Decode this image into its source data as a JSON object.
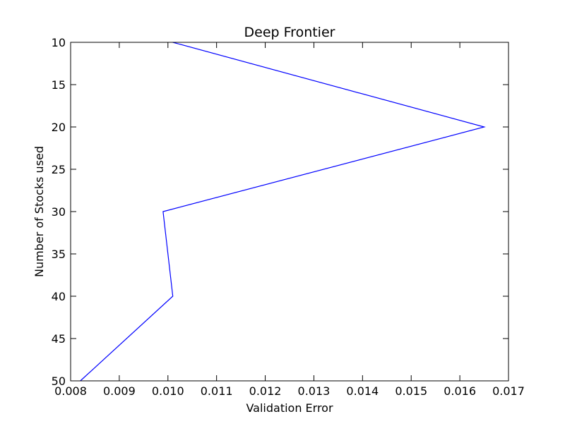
{
  "chart_data": {
    "type": "line",
    "title": "Deep Frontier",
    "xlabel": "Validation Error",
    "ylabel": "Number of Stocks used",
    "xlim": [
      0.008,
      0.017
    ],
    "ylim": [
      10,
      50
    ],
    "y_inverted": true,
    "grid": false,
    "series": [
      {
        "color": "#0000ff",
        "points": [
          {
            "x": 0.0101,
            "y": 10
          },
          {
            "x": 0.0165,
            "y": 20
          },
          {
            "x": 0.0099,
            "y": 30
          },
          {
            "x": 0.0101,
            "y": 40
          },
          {
            "x": 0.0082,
            "y": 50
          }
        ]
      }
    ],
    "x_ticks": [
      {
        "value": 0.008,
        "label": "0.008"
      },
      {
        "value": 0.009,
        "label": "0.009"
      },
      {
        "value": 0.01,
        "label": "0.010"
      },
      {
        "value": 0.011,
        "label": "0.011"
      },
      {
        "value": 0.012,
        "label": "0.012"
      },
      {
        "value": 0.013,
        "label": "0.013"
      },
      {
        "value": 0.014,
        "label": "0.014"
      },
      {
        "value": 0.015,
        "label": "0.015"
      },
      {
        "value": 0.016,
        "label": "0.016"
      },
      {
        "value": 0.017,
        "label": "0.017"
      }
    ],
    "y_ticks": [
      {
        "value": 10,
        "label": "10"
      },
      {
        "value": 15,
        "label": "15"
      },
      {
        "value": 20,
        "label": "20"
      },
      {
        "value": 25,
        "label": "25"
      },
      {
        "value": 30,
        "label": "30"
      },
      {
        "value": 35,
        "label": "35"
      },
      {
        "value": 40,
        "label": "40"
      },
      {
        "value": 45,
        "label": "45"
      },
      {
        "value": 50,
        "label": "50"
      }
    ]
  }
}
